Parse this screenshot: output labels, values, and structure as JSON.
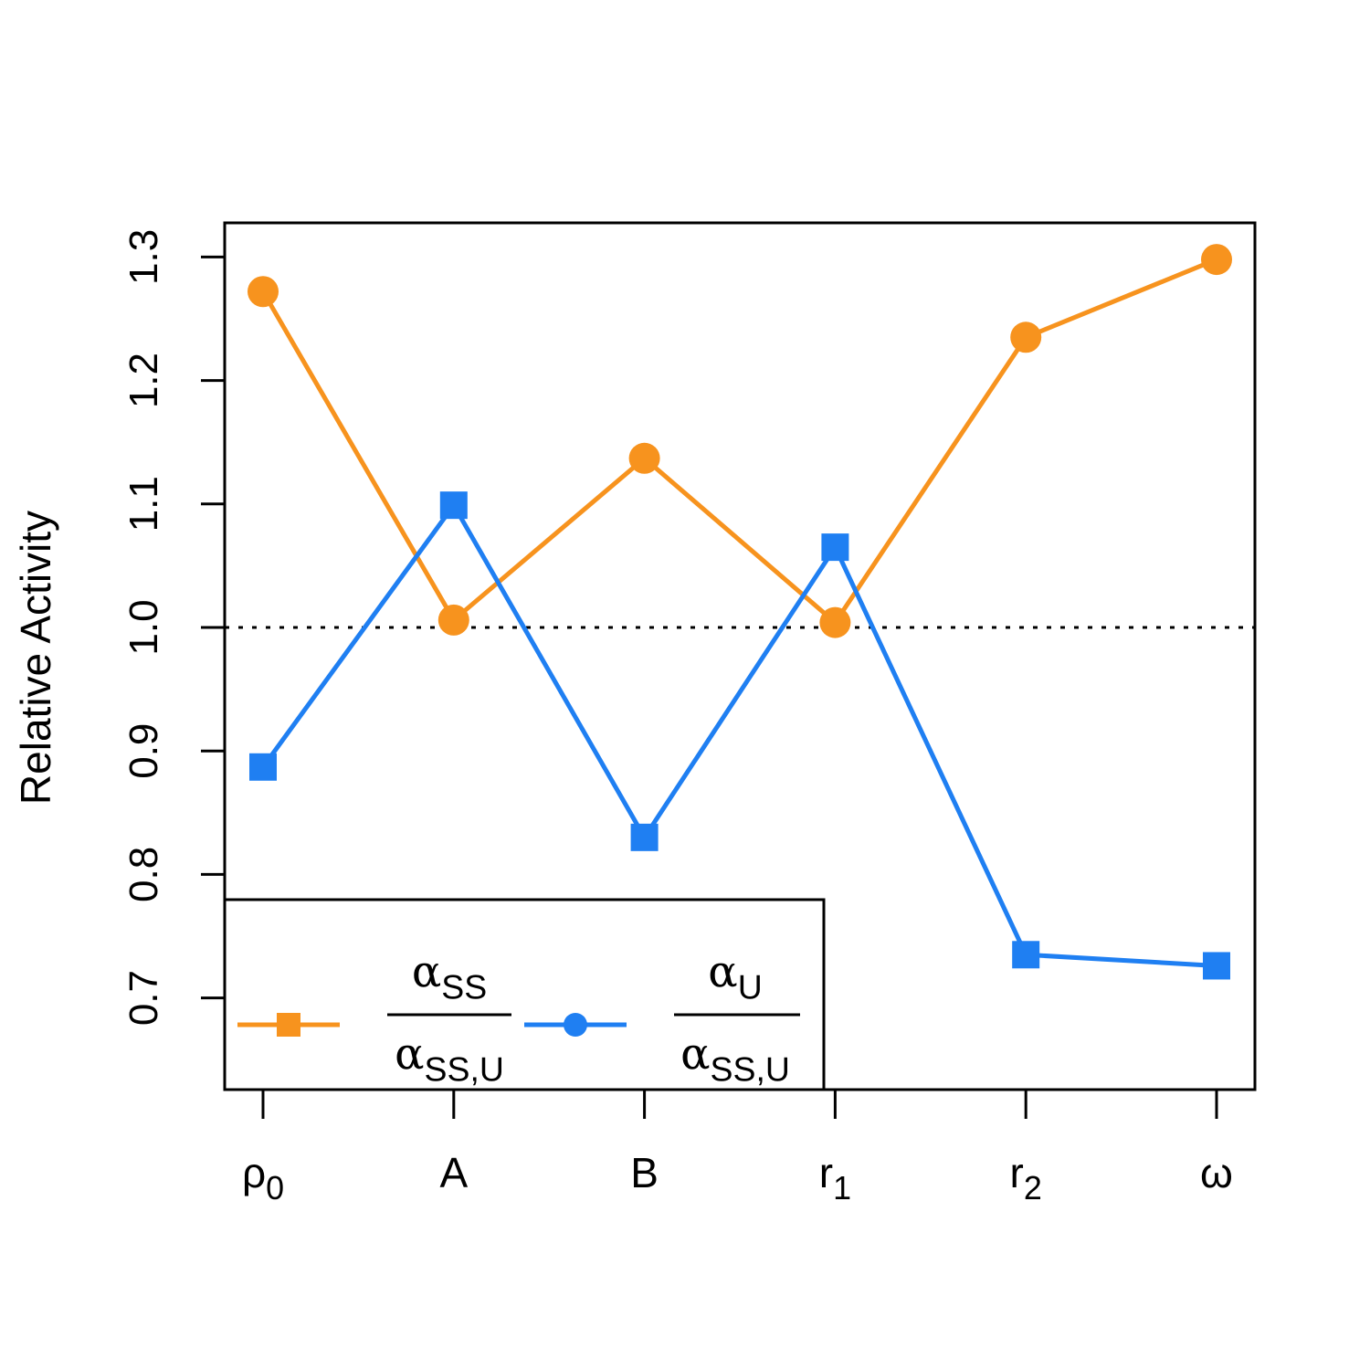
{
  "chart_data": {
    "type": "line",
    "title": "",
    "xlabel": "",
    "ylabel": "Relative Activity",
    "categories": [
      {
        "base": "ρ",
        "sub": "0"
      },
      {
        "base": "A",
        "sub": ""
      },
      {
        "base": "B",
        "sub": ""
      },
      {
        "base": "r",
        "sub": "1"
      },
      {
        "base": "r",
        "sub": "2"
      },
      {
        "base": "ω",
        "sub": ""
      }
    ],
    "ylim": [
      0.625,
      1.325
    ],
    "yticks": [
      "0.7",
      "0.8",
      "0.9",
      "1.0",
      "1.1",
      "1.2",
      "1.3"
    ],
    "reference_line": {
      "y": 1.0,
      "style": "dotted"
    },
    "series": [
      {
        "key": "orange",
        "color": "#F7931E",
        "marker": "circle",
        "values": [
          1.272,
          1.006,
          1.137,
          1.004,
          1.235,
          1.298
        ]
      },
      {
        "key": "blue",
        "color": "#1F7FF2",
        "marker": "square",
        "values": [
          0.887,
          1.099,
          0.83,
          1.065,
          0.735,
          0.726
        ]
      }
    ],
    "legend": {
      "placement": "bottom-left",
      "entries": [
        {
          "series": "orange",
          "marker": "square",
          "num": {
            "base": "α",
            "sub": "SS"
          },
          "den": {
            "base": "α",
            "sub": "SS,U"
          }
        },
        {
          "series": "blue",
          "marker": "circle",
          "num": {
            "base": "α",
            "sub": "U"
          },
          "den": {
            "base": "α",
            "sub": "SS,U"
          }
        }
      ]
    },
    "grid": false
  }
}
